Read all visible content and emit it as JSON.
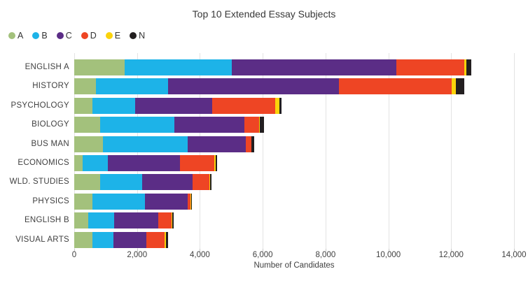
{
  "chart_data": {
    "type": "bar",
    "orientation": "horizontal",
    "stacked": true,
    "title": "Top 10 Extended Essay Subjects",
    "xlabel": "Number of Candidates",
    "xlim": [
      0,
      14000
    ],
    "grid": true,
    "legend_position": "top-left",
    "x_ticks": [
      0,
      2000,
      4000,
      6000,
      8000,
      10000,
      12000,
      14000
    ],
    "x_tick_labels": [
      "0",
      "2,000",
      "4,000",
      "6,000",
      "8,000",
      "10,000",
      "12,000",
      "14,000"
    ],
    "categories": [
      "ENGLISH A",
      "HISTORY",
      "PSYCHOLOGY",
      "BIOLOGY",
      "BUS MAN",
      "ECONOMICS",
      "WLD. STUDIES",
      "PHYSICS",
      "ENGLISH B",
      "VISUAL ARTS"
    ],
    "series": [
      {
        "name": "A",
        "color": "#a3c17c",
        "values": [
          1600,
          700,
          590,
          820,
          915,
          275,
          820,
          590,
          440,
          570
        ]
      },
      {
        "name": "B",
        "color": "#1db3e8",
        "values": [
          3420,
          2280,
          1360,
          2370,
          2690,
          800,
          1340,
          1670,
          835,
          670
        ]
      },
      {
        "name": "C",
        "color": "#5b2d86",
        "values": [
          5230,
          5450,
          2440,
          2225,
          1865,
          2300,
          1615,
          1355,
          1390,
          1065
        ]
      },
      {
        "name": "D",
        "color": "#ee4524",
        "values": [
          2170,
          3580,
          2015,
          480,
          165,
          1095,
          530,
          75,
          445,
          575
        ]
      },
      {
        "name": "E",
        "color": "#fbd30b",
        "values": [
          70,
          130,
          120,
          20,
          15,
          30,
          25,
          30,
          10,
          45
        ]
      },
      {
        "name": "N",
        "color": "#231f20",
        "values": [
          160,
          280,
          85,
          120,
          75,
          45,
          40,
          35,
          55,
          65
        ]
      }
    ],
    "totals": [
      12650,
      12420,
      6610,
      6035,
      5725,
      4545,
      4370,
      3755,
      3175,
      2990
    ]
  }
}
